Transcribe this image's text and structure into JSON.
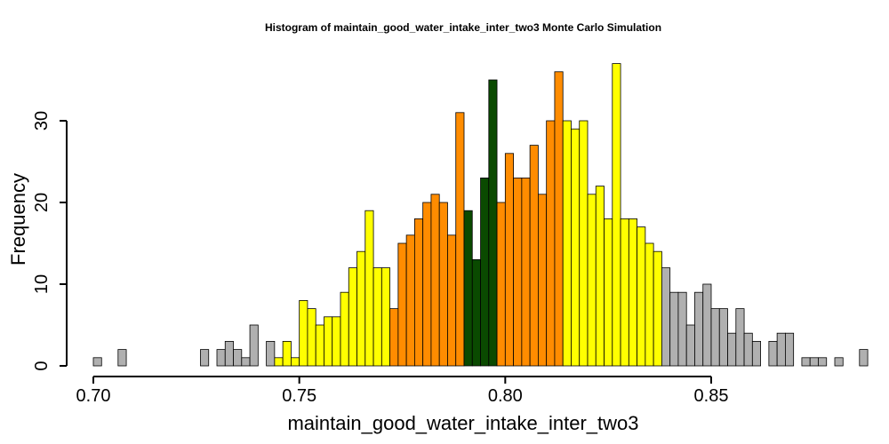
{
  "chart_data": {
    "type": "bar",
    "title": "Histogram of  maintain_good_water_intake_inter_two3  Monte Carlo Simulation",
    "xlabel": "maintain_good_water_intake_inter_two3",
    "ylabel": "Frequency",
    "xlim": [
      0.7,
      0.88
    ],
    "ylim": [
      0,
      37
    ],
    "bin_start": 0.7,
    "bin_width": 0.002,
    "x_ticks": [
      0.7,
      0.75,
      0.8,
      0.85
    ],
    "x_tick_labels": [
      "0.70",
      "0.75",
      "0.80",
      "0.85"
    ],
    "y_ticks": [
      0,
      10,
      20,
      30
    ],
    "y_tick_labels": [
      "0",
      "10",
      "20",
      "30"
    ],
    "values": [
      1,
      0,
      0,
      2,
      0,
      0,
      0,
      0,
      0,
      0,
      0,
      0,
      0,
      2,
      0,
      2,
      3,
      2,
      1,
      5,
      0,
      3,
      1,
      3,
      1,
      8,
      7,
      5,
      6,
      6,
      9,
      12,
      14,
      19,
      12,
      12,
      7,
      15,
      16,
      18,
      20,
      21,
      20,
      16,
      31,
      19,
      13,
      23,
      35,
      20,
      26,
      23,
      23,
      27,
      21,
      30,
      36,
      30,
      29,
      30,
      21,
      22,
      18,
      37,
      18,
      18,
      17,
      15,
      14,
      12,
      9,
      9,
      5,
      9,
      10,
      7,
      7,
      4,
      7,
      4,
      3,
      0,
      3,
      4,
      4,
      0,
      1,
      1,
      1,
      0,
      1,
      0,
      0,
      2
    ],
    "band_colors": {
      "tail": "#b0b0b0",
      "outer": "#ffff00",
      "inner": "#ff8c00",
      "center": "#0a4a00"
    },
    "bands": [
      {
        "from": 0.7,
        "to": 0.744,
        "color": "tail"
      },
      {
        "from": 0.744,
        "to": 0.772,
        "color": "outer"
      },
      {
        "from": 0.772,
        "to": 0.79,
        "color": "inner"
      },
      {
        "from": 0.79,
        "to": 0.798,
        "color": "center"
      },
      {
        "from": 0.798,
        "to": 0.814,
        "color": "inner"
      },
      {
        "from": 0.814,
        "to": 0.838,
        "color": "outer"
      },
      {
        "from": 0.838,
        "to": 0.88,
        "color": "tail"
      }
    ]
  }
}
